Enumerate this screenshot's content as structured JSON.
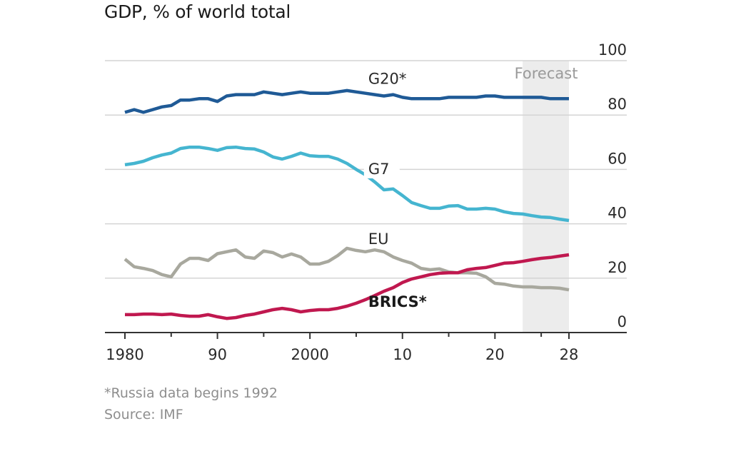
{
  "chart_data": {
    "type": "line",
    "title": "GDP, % of world total",
    "xlabel": "",
    "ylabel": "",
    "xlim": [
      1980,
      2028
    ],
    "ylim": [
      0,
      100
    ],
    "grid": true,
    "y_axis_side": "right",
    "y_ticks": [
      0,
      20,
      40,
      60,
      80,
      100
    ],
    "x_ticks": [
      {
        "year": 1980,
        "label": "1980"
      },
      {
        "year": 1990,
        "label": "90"
      },
      {
        "year": 2000,
        "label": "2000"
      },
      {
        "year": 2010,
        "label": "10"
      },
      {
        "year": 2020,
        "label": "20"
      },
      {
        "year": 2028,
        "label": "28"
      }
    ],
    "x_minor_ticks": [
      1985,
      1995,
      2005,
      2015,
      2025
    ],
    "forecast": {
      "label": "Forecast",
      "start": 2023,
      "end": 2028
    },
    "x": [
      1980,
      1981,
      1982,
      1983,
      1984,
      1985,
      1986,
      1987,
      1988,
      1989,
      1990,
      1991,
      1992,
      1993,
      1994,
      1995,
      1996,
      1997,
      1998,
      1999,
      2000,
      2001,
      2002,
      2003,
      2004,
      2005,
      2006,
      2007,
      2008,
      2009,
      2010,
      2011,
      2012,
      2013,
      2014,
      2015,
      2016,
      2017,
      2018,
      2019,
      2020,
      2021,
      2022,
      2023,
      2024,
      2025,
      2026,
      2027,
      2028
    ],
    "series": [
      {
        "name": "G20*",
        "color": "#1f5a96",
        "label_style": "normal",
        "label_at": {
          "year": 2008,
          "value": 91.5
        },
        "values": [
          81,
          82,
          81,
          82,
          83,
          83.5,
          85.5,
          85.5,
          86,
          86,
          85,
          87,
          87.5,
          87.5,
          87.5,
          88.5,
          88,
          87.5,
          88,
          88.5,
          88,
          88,
          88,
          88.5,
          89,
          88.5,
          88,
          87.5,
          87,
          87.5,
          86.5,
          86,
          86,
          86,
          86,
          86.5,
          86.5,
          86.5,
          86.5,
          87,
          87,
          86.5,
          86.5,
          86.5,
          86.5,
          86.5,
          86,
          86,
          86
        ]
      },
      {
        "name": "G7",
        "color": "#45b5d0",
        "label_style": "normal",
        "label_at": {
          "year": 2008,
          "value": 58.3
        },
        "values": [
          61.7,
          62.2,
          63,
          64.3,
          65.3,
          66,
          67.7,
          68.2,
          68.2,
          67.7,
          67,
          68,
          68.2,
          67.7,
          67.5,
          66.4,
          64.6,
          63.8,
          64.8,
          66,
          65,
          64.8,
          64.8,
          63.8,
          62.2,
          60,
          58,
          55.4,
          52.5,
          52.8,
          50.4,
          47.8,
          46.7,
          45.7,
          45.7,
          46.5,
          46.7,
          45.4,
          45.4,
          45.7,
          45.4,
          44.4,
          43.8,
          43.6,
          43,
          42.5,
          42.3,
          41.7,
          41.2
        ]
      },
      {
        "name": "EU",
        "color": "#a8a89e",
        "label_style": "normal",
        "label_at": {
          "year": 2008,
          "value": 32.5
        },
        "values": [
          27,
          24.2,
          23.6,
          22.8,
          21.3,
          20.5,
          25.2,
          27.3,
          27.3,
          26.5,
          29,
          29.7,
          30.4,
          27.8,
          27.3,
          30,
          29.4,
          27.8,
          28.9,
          27.8,
          25.2,
          25.2,
          26.2,
          28.3,
          31,
          30.2,
          29.7,
          30.4,
          29.7,
          27.8,
          26.5,
          25.5,
          23.6,
          23.1,
          23.4,
          22.3,
          22,
          22,
          21.8,
          20.5,
          18.1,
          17.8,
          17.1,
          16.8,
          16.8,
          16.5,
          16.5,
          16.3,
          15.7
        ]
      },
      {
        "name": "BRICS*",
        "color": "#c0184f",
        "label_style": "bold",
        "label_at": {
          "year": 2008,
          "value": 9.5
        },
        "values": [
          6.6,
          6.6,
          6.8,
          6.8,
          6.6,
          6.8,
          6.3,
          6,
          6,
          6.6,
          5.8,
          5.2,
          5.5,
          6.3,
          6.8,
          7.6,
          8.4,
          8.9,
          8.4,
          7.6,
          8.1,
          8.4,
          8.4,
          8.9,
          9.7,
          10.8,
          12.1,
          13.6,
          15.2,
          16.5,
          18.4,
          19.7,
          20.5,
          21.3,
          21.8,
          22,
          22,
          23.1,
          23.6,
          23.9,
          24.7,
          25.5,
          25.7,
          26.2,
          26.8,
          27.3,
          27.6,
          28.1,
          28.6
        ]
      }
    ],
    "notes": [
      "*Russia data begins 1992",
      "Source: IMF"
    ]
  }
}
